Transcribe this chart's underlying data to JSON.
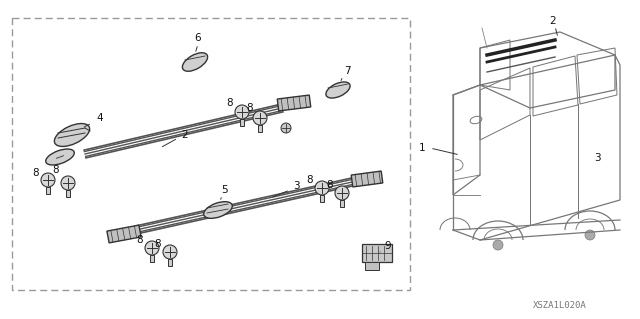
{
  "bg_color": "#ffffff",
  "fig_w": 6.4,
  "fig_h": 3.19,
  "dpi": 100,
  "watermark": "XSZA1L020A",
  "lc": "#555555",
  "lc2": "#333333"
}
